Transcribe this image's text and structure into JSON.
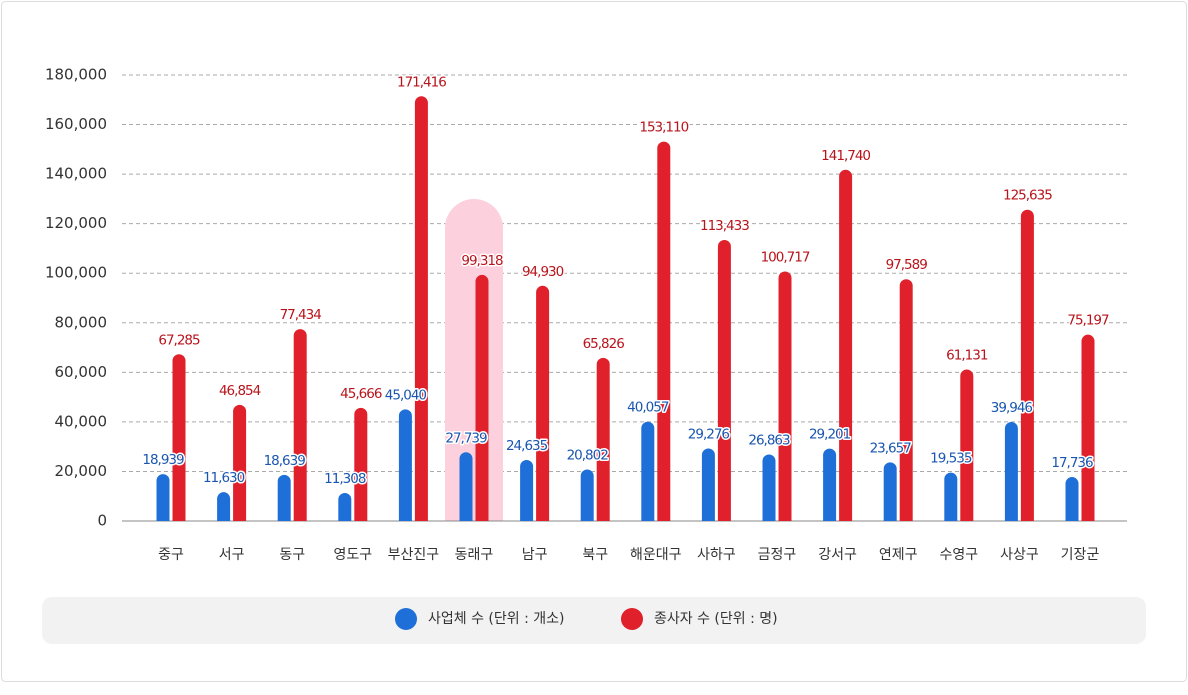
{
  "chart_data": {
    "type": "bar",
    "categories": [
      "중구",
      "서구",
      "동구",
      "영도구",
      "부산진구",
      "동래구",
      "남구",
      "북구",
      "해운대구",
      "사하구",
      "금정구",
      "강서구",
      "연제구",
      "수영구",
      "사상구",
      "기장군"
    ],
    "series": [
      {
        "name": "사업체 수 (단위 : 개소)",
        "color": "#1f6fd8",
        "label_color": "#1a56b0",
        "values": [
          18939,
          11630,
          18639,
          11308,
          45040,
          27739,
          24635,
          20802,
          40057,
          29276,
          26863,
          29201,
          23657,
          19535,
          39946,
          17736
        ],
        "value_labels": [
          "18,939",
          "11,630",
          "18,639",
          "11,308",
          "45,040",
          "27,739",
          "24,635",
          "20,802",
          "40,057",
          "29,276",
          "26,863",
          "29,201",
          "23,657",
          "19,535",
          "39,946",
          "17,736"
        ]
      },
      {
        "name": "종사자 수 (단위 : 명)",
        "color": "#e0202a",
        "label_color": "#b8141c",
        "values": [
          67285,
          46854,
          77434,
          45666,
          171416,
          99318,
          94930,
          65826,
          153110,
          113433,
          100717,
          141740,
          97589,
          61131,
          125635,
          75197
        ],
        "value_labels": [
          "67,285",
          "46,854",
          "77,434",
          "45,666",
          "171,416",
          "99,318",
          "94,930",
          "65,826",
          "153,110",
          "113,433",
          "100,717",
          "141,740",
          "97,589",
          "61,131",
          "125,635",
          "75,197"
        ]
      }
    ],
    "ylim": [
      0,
      180000
    ],
    "yticks": [
      0,
      {
        "value": 20000,
        "label": "20,000"
      },
      {
        "value": 40000,
        "label": "40,000"
      },
      {
        "value": 60000,
        "label": "60,000"
      },
      {
        "value": 80000,
        "label": "80,000"
      },
      {
        "value": 100000,
        "label": "100,000"
      },
      {
        "value": 120000,
        "label": "120,000"
      },
      {
        "value": 140000,
        "label": "140,000"
      },
      {
        "value": 160000,
        "label": "160,000"
      },
      {
        "value": 180000,
        "label": "180,000"
      }
    ],
    "grid": true,
    "highlight_index": 5,
    "highlight_color": "#fcd0dc",
    "legend": "bottom"
  }
}
